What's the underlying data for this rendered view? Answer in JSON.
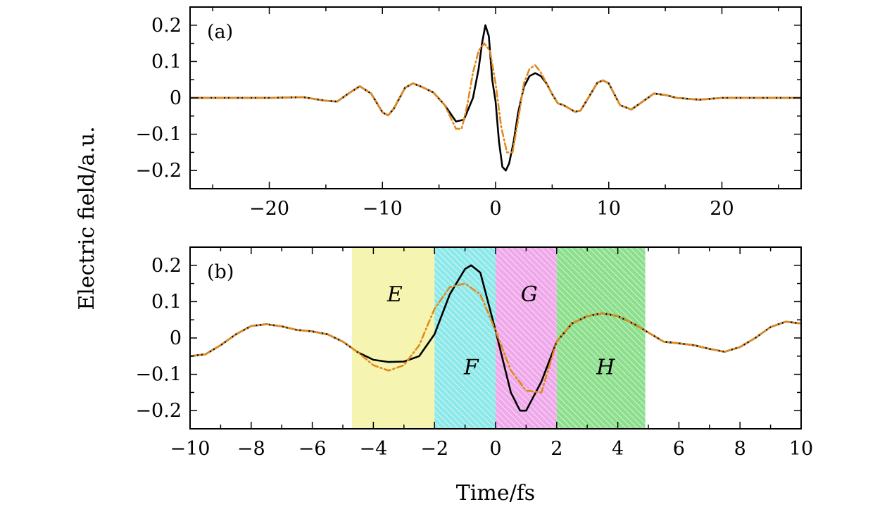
{
  "chart_data": [
    {
      "type": "line",
      "panel_label": "(a)",
      "xlabel": "",
      "ylabel": "Electric field/a.u.",
      "xlim": [
        -27,
        27
      ],
      "ylim": [
        -0.25,
        0.25
      ],
      "xticks": [
        -20,
        -10,
        0,
        10,
        20
      ],
      "xtick_labels": [
        "−20",
        "−10",
        "0",
        "10",
        "20"
      ],
      "yticks": [
        -0.2,
        -0.1,
        0,
        0.1,
        0.2
      ],
      "ytick_labels": [
        "−0.2",
        "−0.1",
        "0",
        "0.1",
        "0.2"
      ],
      "grid": false,
      "series": [
        {
          "style": "solid",
          "color": "#000000",
          "x": [
            -27,
            -20,
            -17,
            -15,
            -14,
            -13,
            -12,
            -11,
            -10,
            -9.5,
            -9,
            -8,
            -7.3,
            -6.5,
            -5.5,
            -4.5,
            -3.5,
            -2.8,
            -2,
            -1.5,
            -1.2,
            -0.9,
            -0.6,
            -0.3,
            0,
            0.3,
            0.6,
            0.9,
            1.2,
            1.6,
            2,
            2.5,
            3,
            3.5,
            4,
            4.5,
            5,
            5.5,
            6,
            7,
            7.5,
            8,
            9,
            9.5,
            10,
            11,
            12,
            13,
            14,
            15,
            16,
            18,
            20,
            27
          ],
          "y": [
            0,
            0,
            0.002,
            -0.008,
            -0.01,
            0.012,
            0.032,
            0.012,
            -0.04,
            -0.048,
            -0.03,
            0.028,
            0.04,
            0.03,
            0.015,
            -0.02,
            -0.065,
            -0.06,
            0.0,
            0.08,
            0.15,
            0.2,
            0.17,
            0.05,
            -0.01,
            -0.12,
            -0.19,
            -0.2,
            -0.18,
            -0.12,
            -0.04,
            0.03,
            0.06,
            0.068,
            0.06,
            0.04,
            0.01,
            -0.015,
            -0.02,
            -0.038,
            -0.035,
            -0.01,
            0.042,
            0.048,
            0.04,
            -0.02,
            -0.032,
            -0.01,
            0.012,
            0.008,
            0.0,
            -0.005,
            0.0,
            0
          ]
        },
        {
          "style": "dash-dot",
          "color": "#e08a1e",
          "x": [
            -27,
            -20,
            -17,
            -15,
            -14,
            -13,
            -12,
            -11,
            -10,
            -9.5,
            -9,
            -8,
            -7.3,
            -6.5,
            -5.5,
            -4.5,
            -3.5,
            -3,
            -2.5,
            -2,
            -1.5,
            -1,
            -0.5,
            0,
            0.5,
            1,
            1.5,
            2,
            2.5,
            3,
            3.5,
            4,
            4.5,
            5,
            5.5,
            6,
            7,
            7.5,
            8,
            9,
            9.5,
            10,
            11,
            12,
            13,
            14,
            15,
            16,
            18,
            20,
            27
          ],
          "y": [
            0,
            0,
            0.002,
            -0.008,
            -0.01,
            0.012,
            0.032,
            0.012,
            -0.04,
            -0.048,
            -0.03,
            0.028,
            0.04,
            0.03,
            0.015,
            -0.02,
            -0.085,
            -0.085,
            -0.02,
            0.07,
            0.13,
            0.15,
            0.13,
            0.04,
            -0.08,
            -0.15,
            -0.15,
            -0.06,
            0.04,
            0.08,
            0.09,
            0.07,
            0.04,
            0.01,
            -0.015,
            -0.02,
            -0.038,
            -0.035,
            -0.01,
            0.042,
            0.048,
            0.04,
            -0.02,
            -0.032,
            -0.01,
            0.012,
            0.008,
            0.0,
            -0.005,
            0.0,
            0
          ]
        }
      ]
    },
    {
      "type": "line",
      "panel_label": "(b)",
      "xlabel": "Time/fs",
      "ylabel": "Electric field/a.u.",
      "xlim": [
        -10,
        10
      ],
      "ylim": [
        -0.25,
        0.25
      ],
      "xticks": [
        -10,
        -8,
        -6,
        -4,
        -2,
        0,
        2,
        4,
        6,
        8,
        10
      ],
      "xtick_labels": [
        "−10",
        "−8",
        "−6",
        "−4",
        "−2",
        "0",
        "2",
        "4",
        "6",
        "8",
        "10"
      ],
      "yticks": [
        -0.2,
        -0.1,
        0,
        0.1,
        0.2
      ],
      "ytick_labels": [
        "−0.2",
        "−0.1",
        "0",
        "0.1",
        "0.2"
      ],
      "grid": false,
      "regions": [
        {
          "label": "E",
          "x0": -4.7,
          "x1": -2.0,
          "color": "#f4f4a8",
          "hatch": false,
          "label_x": -3.3,
          "label_y": 0.12
        },
        {
          "label": "F",
          "x0": -2.0,
          "x1": 0.0,
          "color": "#2fd6d6",
          "hatch": true,
          "label_x": -0.8,
          "label_y": -0.08
        },
        {
          "label": "G",
          "x0": 0.0,
          "x1": 2.0,
          "color": "#e260d8",
          "hatch": true,
          "label_x": 1.1,
          "label_y": 0.12
        },
        {
          "label": "H",
          "x0": 2.0,
          "x1": 4.9,
          "color": "#2ec42e",
          "hatch": true,
          "label_x": 3.6,
          "label_y": -0.08
        }
      ],
      "series": [
        {
          "style": "solid",
          "color": "#000000",
          "x": [
            -10,
            -9.5,
            -9,
            -8.5,
            -8,
            -7.5,
            -7,
            -6.5,
            -6,
            -5.5,
            -5,
            -4.5,
            -4,
            -3.5,
            -3,
            -2.5,
            -2,
            -1.5,
            -1,
            -0.8,
            -0.5,
            0,
            0.5,
            0.8,
            1,
            1.5,
            2,
            2.5,
            3,
            3.5,
            4,
            4.5,
            5,
            5.5,
            6,
            6.5,
            7,
            7.5,
            8,
            8.5,
            9,
            9.5,
            10
          ],
          "y": [
            -0.05,
            -0.045,
            -0.02,
            0.01,
            0.033,
            0.038,
            0.032,
            0.022,
            0.018,
            0.01,
            -0.01,
            -0.04,
            -0.06,
            -0.066,
            -0.065,
            -0.05,
            0.01,
            0.12,
            0.19,
            0.2,
            0.18,
            0.02,
            -0.15,
            -0.2,
            -0.2,
            -0.12,
            -0.01,
            0.04,
            0.06,
            0.068,
            0.06,
            0.04,
            0.015,
            -0.01,
            -0.015,
            -0.02,
            -0.03,
            -0.038,
            -0.025,
            0.0,
            0.03,
            0.045,
            0.04
          ]
        },
        {
          "style": "dash-dot",
          "color": "#e08a1e",
          "x": [
            -10,
            -9.5,
            -9,
            -8.5,
            -8,
            -7.5,
            -7,
            -6.5,
            -6,
            -5.5,
            -5,
            -4.5,
            -4,
            -3.5,
            -3,
            -2.5,
            -2,
            -1.5,
            -1,
            -0.5,
            0,
            0.5,
            1,
            1.5,
            2,
            2.5,
            3,
            3.5,
            4,
            4.5,
            5,
            5.5,
            6,
            6.5,
            7,
            7.5,
            8,
            8.5,
            9,
            9.5,
            10
          ],
          "y": [
            -0.05,
            -0.045,
            -0.02,
            0.01,
            0.033,
            0.038,
            0.032,
            0.022,
            0.018,
            0.01,
            -0.01,
            -0.04,
            -0.075,
            -0.09,
            -0.075,
            -0.02,
            0.08,
            0.14,
            0.15,
            0.12,
            0.02,
            -0.09,
            -0.145,
            -0.15,
            -0.01,
            0.04,
            0.06,
            0.068,
            0.06,
            0.04,
            0.015,
            -0.01,
            -0.015,
            -0.02,
            -0.03,
            -0.038,
            -0.025,
            0.0,
            0.03,
            0.045,
            0.04
          ]
        }
      ]
    }
  ]
}
